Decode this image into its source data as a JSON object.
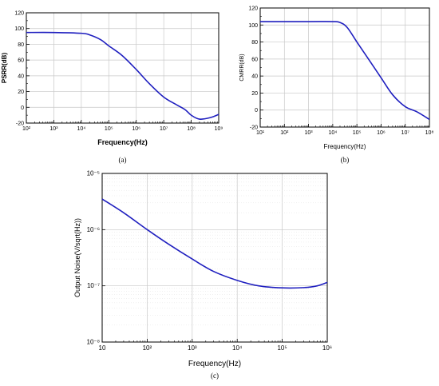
{
  "chart_data": [
    {
      "id": "a",
      "type": "line",
      "caption": "(a)",
      "xlabel": "Frequency(Hz)",
      "ylabel": "PSRR(dB)",
      "xscale": "log",
      "xlim": [
        100,
        1000000000
      ],
      "ylim": [
        -20,
        120
      ],
      "xticks": [
        "10²",
        "10³",
        "10⁴",
        "10⁵",
        "10⁶",
        "10⁷",
        "10⁸",
        "10⁹"
      ],
      "yticks": [
        "-20",
        "0",
        "20",
        "40",
        "60",
        "80",
        "100",
        "120"
      ],
      "grid": true,
      "line_color": "#1f1fbf",
      "series": [
        {
          "x": [
            100,
            1000,
            10000,
            20000,
            50000,
            100000,
            300000,
            1000000,
            3000000,
            10000000,
            30000000,
            60000000,
            100000000,
            200000000,
            500000000,
            1000000000
          ],
          "y": [
            95,
            95,
            94,
            92,
            86,
            78,
            66,
            48,
            30,
            13,
            3,
            -3,
            -10,
            -15,
            -13,
            -9
          ]
        }
      ]
    },
    {
      "id": "b",
      "type": "line",
      "caption": "(b)",
      "xlabel": "Frequency(Hz)",
      "ylabel": "CMRR(dB)",
      "xscale": "log",
      "xlim": [
        10,
        100000000
      ],
      "ylim": [
        -20,
        120
      ],
      "xticks": [
        "10¹",
        "10²",
        "10³",
        "10⁴",
        "10⁵",
        "10⁶",
        "10⁷",
        "10⁸"
      ],
      "yticks": [
        "-20",
        "0",
        "20",
        "40",
        "60",
        "80",
        "100",
        "120"
      ],
      "grid": true,
      "line_color": "#1f1fbf",
      "series": [
        {
          "x": [
            10,
            1000,
            10000,
            20000,
            40000,
            100000,
            300000,
            1000000,
            3000000,
            10000000,
            30000000,
            100000000
          ],
          "y": [
            104,
            104,
            104,
            103,
            97,
            80,
            60,
            38,
            18,
            4,
            -2,
            -11
          ]
        }
      ]
    },
    {
      "id": "c",
      "type": "line",
      "caption": "(c)",
      "xlabel": "Frequency(Hz)",
      "ylabel": "Output Noise(V/sqrt(Hz))",
      "xscale": "log",
      "yscale": "log",
      "xlim": [
        10,
        1000000
      ],
      "ylim": [
        1e-08,
        1e-05
      ],
      "xticks": [
        "10",
        "10²",
        "10³",
        "10⁴",
        "10⁵",
        "10⁶"
      ],
      "yticks": [
        "10⁻⁸",
        "10⁻⁷",
        "10⁻⁶",
        "10⁻⁵"
      ],
      "grid": true,
      "line_color": "#1f1fbf",
      "series": [
        {
          "x": [
            10,
            30,
            100,
            300,
            1000,
            3000,
            10000,
            30000,
            100000,
            300000,
            600000,
            1000000
          ],
          "y": [
            3.5e-06,
            2e-06,
            1e-06,
            5.5e-07,
            3e-07,
            1.8e-07,
            1.25e-07,
            1e-07,
            9.2e-08,
            9.3e-08,
            1e-07,
            1.15e-07
          ]
        }
      ]
    }
  ]
}
